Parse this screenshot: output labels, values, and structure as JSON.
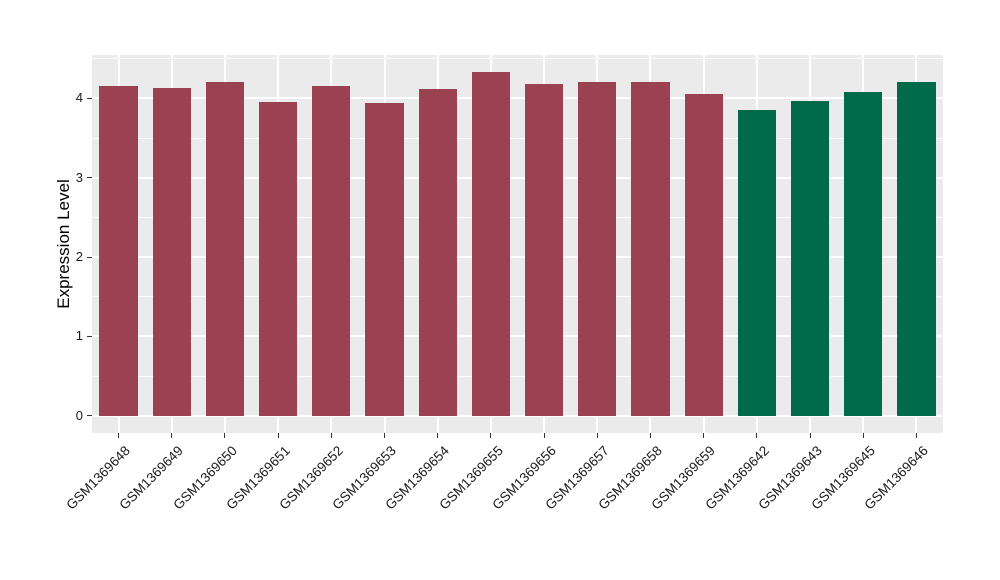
{
  "figure": {
    "background_color": "#ffffff",
    "panel_background_color": "#EBEBEB",
    "grid_color": "#FFFFFF",
    "axis_text_color": "#1a1a1a",
    "tick_mark_color": "#333333"
  },
  "chart_data": {
    "type": "bar",
    "title": "",
    "xlabel": "",
    "ylabel": "Expression Level",
    "categories": [
      "GSM1369648",
      "GSM1369649",
      "GSM1369650",
      "GSM1369651",
      "GSM1369652",
      "GSM1369653",
      "GSM1369654",
      "GSM1369655",
      "GSM1369656",
      "GSM1369657",
      "GSM1369658",
      "GSM1369659",
      "GSM1369642",
      "GSM1369643",
      "GSM1369645",
      "GSM1369646"
    ],
    "values": [
      4.16,
      4.13,
      4.21,
      3.95,
      4.15,
      3.94,
      4.12,
      4.33,
      4.18,
      4.2,
      4.2,
      4.05,
      3.85,
      3.97,
      4.08,
      4.2
    ],
    "groups": [
      "group1",
      "group1",
      "group1",
      "group1",
      "group1",
      "group1",
      "group1",
      "group1",
      "group1",
      "group1",
      "group1",
      "group1",
      "group2",
      "group2",
      "group2",
      "group2"
    ],
    "group_colors": {
      "group1": "#9A4251",
      "group2": "#016A4A"
    },
    "yticks": [
      0,
      1,
      2,
      3,
      4
    ],
    "yticks_minor": [
      0.5,
      1.5,
      2.5,
      3.5,
      4.5
    ],
    "ylim": [
      0,
      4.5
    ],
    "grid": "on",
    "legend_position": "none",
    "x_label_rotation_deg": 45
  }
}
